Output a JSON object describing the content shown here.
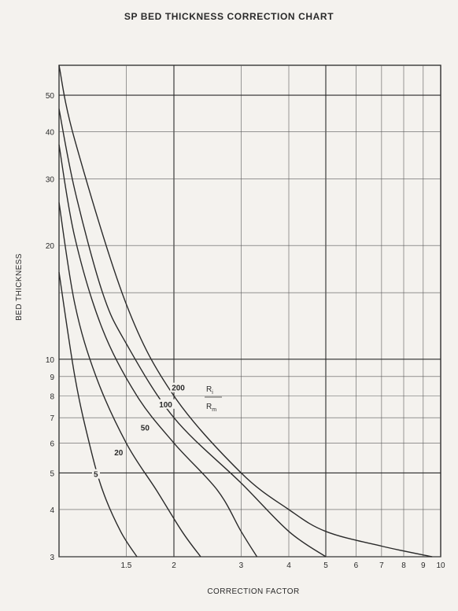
{
  "chart_data": {
    "type": "line",
    "title": "SP BED THICKNESS CORRECTION CHART",
    "xlabel": "CORRECTION FACTOR",
    "ylabel": "BED THICKNESS",
    "x_scale": "log",
    "y_scale": "log",
    "xlim": [
      1,
      10
    ],
    "ylim": [
      3,
      60
    ],
    "x_ticks": [
      1.5,
      2,
      3,
      4,
      5,
      6,
      7,
      8,
      9,
      10
    ],
    "x_tick_labels": [
      "1.5",
      "2",
      "3",
      "4",
      "5",
      "6",
      "7",
      "8",
      "9",
      "10"
    ],
    "y_ticks": [
      3,
      4,
      5,
      6,
      7,
      8,
      9,
      10,
      20,
      30,
      40,
      50
    ],
    "y_tick_labels": [
      "3",
      "4",
      "5",
      "6",
      "7",
      "8",
      "9",
      "10",
      "20",
      "30",
      "40",
      "50"
    ],
    "x_grid": [
      1.5,
      2,
      3,
      4,
      5,
      6,
      7,
      8,
      9,
      10
    ],
    "y_grid": [
      3,
      4,
      5,
      6,
      7,
      8,
      9,
      10,
      15,
      20,
      30,
      40,
      50
    ],
    "grid": true,
    "legend_title": {
      "numerator": "R",
      "numerator_sub": "i",
      "denominator": "R",
      "denominator_sub": "m"
    },
    "series": [
      {
        "name": "5",
        "points": [
          [
            1.0,
            17
          ],
          [
            1.1,
            9
          ],
          [
            1.2,
            6
          ],
          [
            1.3,
            4.5
          ],
          [
            1.45,
            3.5
          ],
          [
            1.6,
            3.0
          ]
        ]
      },
      {
        "name": "20",
        "points": [
          [
            1.0,
            26
          ],
          [
            1.1,
            14
          ],
          [
            1.25,
            9
          ],
          [
            1.5,
            6
          ],
          [
            1.8,
            4.5
          ],
          [
            2.1,
            3.5
          ],
          [
            2.35,
            3.0
          ]
        ]
      },
      {
        "name": "50",
        "points": [
          [
            1.0,
            37
          ],
          [
            1.1,
            21
          ],
          [
            1.3,
            12
          ],
          [
            1.6,
            8
          ],
          [
            2.0,
            6
          ],
          [
            2.6,
            4.5
          ],
          [
            3.0,
            3.5
          ],
          [
            3.3,
            3.0
          ]
        ]
      },
      {
        "name": "100",
        "points": [
          [
            1.0,
            46
          ],
          [
            1.1,
            28
          ],
          [
            1.3,
            15
          ],
          [
            1.5,
            11
          ],
          [
            2.0,
            7
          ],
          [
            3.0,
            4.7
          ],
          [
            4.0,
            3.5
          ],
          [
            5.0,
            3.0
          ]
        ]
      },
      {
        "name": "200",
        "points": [
          [
            1.0,
            60
          ],
          [
            1.1,
            38
          ],
          [
            1.5,
            14
          ],
          [
            2.0,
            8
          ],
          [
            3.0,
            5
          ],
          [
            4.0,
            4
          ],
          [
            5.0,
            3.5
          ],
          [
            7.0,
            3.2
          ],
          [
            9.5,
            3.0
          ]
        ]
      }
    ]
  }
}
